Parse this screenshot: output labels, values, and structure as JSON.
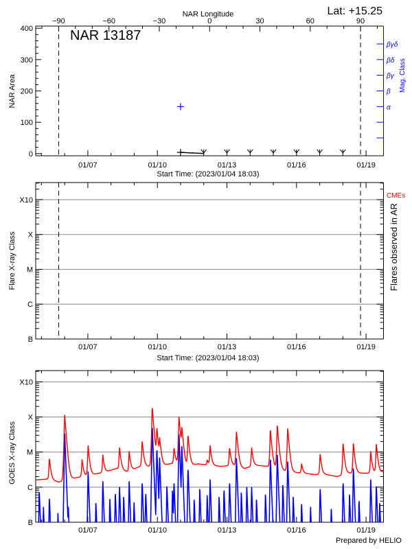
{
  "header": {
    "top_axis_label": "NAR Longitude",
    "lat_label": "Lat: +15.25",
    "region_label": "NAR 13187"
  },
  "footer": "Prepared by HELIO",
  "colors": {
    "long_channel": "#ff0000",
    "short_channel": "#0000ff",
    "mag_class": "#0000ff",
    "cme": "#ff0000",
    "grid": "#999999",
    "axis": "#000000"
  },
  "chart_data": [
    {
      "type": "line",
      "panel": "nar-area",
      "xlabel": "Start Time: (2023/01/04 18:03)",
      "xlim": [
        "2023-01-04T18:03:00Z",
        "2023-01-19T18:03:00Z"
      ],
      "xticks": [
        {
          "t": "2023-01-07T00:00:00Z",
          "label": "01/07"
        },
        {
          "t": "2023-01-10T00:00:00Z",
          "label": "01/10"
        },
        {
          "t": "2023-01-13T00:00:00Z",
          "label": "01/13"
        },
        {
          "t": "2023-01-16T00:00:00Z",
          "label": "01/16"
        },
        {
          "t": "2023-01-19T00:00:00Z",
          "label": "01/19"
        }
      ],
      "top_xlabel": "NAR Longitude",
      "top_xlim": [
        -103.7,
        103.7
      ],
      "top_xticks": [
        "-90",
        "-60",
        "-30",
        "0",
        "30",
        "60",
        "90"
      ],
      "limb_longitudes": [
        -90,
        90
      ],
      "ylabel": "NAR Area",
      "ylim": [
        -7,
        407
      ],
      "yticks": [
        "0",
        "100",
        "200",
        "300",
        "400"
      ],
      "y2label": "Mag. Class",
      "y2ticks": [
        "α",
        "β",
        "βγ",
        "βδ",
        "βγδ"
      ],
      "area_series": [
        {
          "t": "2023-01-11T00:00:00Z",
          "area": 4,
          "marker": "plus"
        },
        {
          "t": "2023-01-12T00:00:00Z",
          "area": 0,
          "marker": "arrow"
        },
        {
          "t": "2023-01-13T00:00:00Z",
          "area": 0,
          "marker": "arrow"
        },
        {
          "t": "2023-01-14T00:00:00Z",
          "area": 0,
          "marker": "arrow"
        },
        {
          "t": "2023-01-15T00:00:00Z",
          "area": 0,
          "marker": "arrow"
        },
        {
          "t": "2023-01-16T00:00:00Z",
          "area": 0,
          "marker": "arrow"
        },
        {
          "t": "2023-01-17T00:00:00Z",
          "area": 0,
          "marker": "arrow"
        },
        {
          "t": "2023-01-18T00:00:00Z",
          "area": 0,
          "marker": "arrow"
        }
      ],
      "mag_class_series": [
        {
          "t": "2023-01-11T00:00:00Z",
          "class": "α"
        }
      ]
    },
    {
      "type": "scatter",
      "panel": "flares",
      "xlabel": "Start Time: (2023/01/04 18:03)",
      "xlim": [
        "2023-01-04T18:03:00Z",
        "2023-01-19T18:03:00Z"
      ],
      "xticks": [
        "01/07",
        "01/10",
        "01/13",
        "01/16",
        "01/19"
      ],
      "ylabel": "Flare X-ray Class",
      "ylim": [
        "B1.0",
        "X31"
      ],
      "yticks": [
        "B",
        "C",
        "M",
        "X",
        "X10"
      ],
      "y2label": "Flares observed in AR",
      "legend": [
        {
          "name": "CMEs",
          "color": "#ff0000"
        }
      ],
      "grid": true,
      "limb_longitudes": [
        -90,
        90
      ],
      "flares": []
    },
    {
      "type": "line",
      "panel": "goes",
      "xlim": [
        "2023-01-04T18:03:00Z",
        "2023-01-19T18:03:00Z"
      ],
      "xticks": [
        "01/07",
        "01/10",
        "01/13",
        "01/16",
        "01/19"
      ],
      "ylabel": "GOES X-ray Class",
      "ylim": [
        "B1.0",
        "X21"
      ],
      "yticks": [
        "B",
        "C",
        "M",
        "X",
        "X10"
      ],
      "grid": true,
      "long_channel": {
        "baseline": {
          "t_start": "2023-01-04T18:00:00Z",
          "step_hours": 12,
          "values": [
            "C1.6",
            "C1.7",
            "C1.4",
            "C1.7",
            "C2.0",
            "C2.3",
            "C2.7",
            "C3.4",
            "C2.7",
            "C3.9",
            "C3.9",
            "C4.2",
            "C4.9",
            "C3.9",
            "C4.6",
            "C4.2",
            "C3.9",
            "C4.2",
            "C3.4",
            "C4.2",
            "C3.9",
            "C3.1",
            "C2.7",
            "C2.5",
            "C2.3",
            "C2.3",
            "C2.0",
            "C2.5",
            "C2.5",
            "C2.5",
            "C2.7"
          ]
        },
        "peaks": [
          {
            "t": "2023-01-05T08:10:00Z",
            "class": "C7.0"
          },
          {
            "t": "2023-01-06T00:00:00Z",
            "class": "X1.2"
          },
          {
            "t": "2023-01-06T18:00:00Z",
            "class": "C6.4"
          },
          {
            "t": "2023-01-07T00:15:00Z",
            "class": "M1.6"
          },
          {
            "t": "2023-01-07T15:30:00Z",
            "class": "C8.7"
          },
          {
            "t": "2023-01-08T08:45:00Z",
            "class": "M1.4"
          },
          {
            "t": "2023-01-08T18:45:00Z",
            "class": "M1.1"
          },
          {
            "t": "2023-01-09T08:10:00Z",
            "class": "M2.2"
          },
          {
            "t": "2023-01-09T18:40:00Z",
            "class": "X2.0"
          },
          {
            "t": "2023-01-09T23:25:00Z",
            "class": "M5.3"
          },
          {
            "t": "2023-01-10T02:15:00Z",
            "class": "M2.7"
          },
          {
            "t": "2023-01-10T17:10:00Z",
            "class": "M1.4"
          },
          {
            "t": "2023-01-10T22:20:00Z",
            "class": "X1.1"
          },
          {
            "t": "2023-01-11T01:15:00Z",
            "class": "M5.3"
          },
          {
            "t": "2023-01-11T07:40:00Z",
            "class": "M3.2"
          },
          {
            "t": "2023-01-12T03:30:00Z",
            "class": "C6.1"
          },
          {
            "t": "2023-01-12T06:30:00Z",
            "class": "M1.6"
          },
          {
            "t": "2023-01-13T02:40:00Z",
            "class": "M1.4"
          },
          {
            "t": "2023-01-13T09:50:00Z",
            "class": "M4.1"
          },
          {
            "t": "2023-01-14T01:30:00Z",
            "class": "M1.4"
          },
          {
            "t": "2023-01-14T20:55:00Z",
            "class": "M4.6"
          },
          {
            "t": "2023-01-15T04:05:00Z",
            "class": "M6.1"
          },
          {
            "t": "2023-01-15T14:50:00Z",
            "class": "M5.1"
          },
          {
            "t": "2023-01-16T05:10:00Z",
            "class": "C4.9"
          },
          {
            "t": "2023-01-17T00:25:00Z",
            "class": "C9.5"
          },
          {
            "t": "2023-01-18T00:10:00Z",
            "class": "M1.9"
          },
          {
            "t": "2023-01-18T10:50:00Z",
            "class": "M1.9"
          },
          {
            "t": "2023-01-19T04:45:00Z",
            "class": "M1.1"
          },
          {
            "t": "2023-01-19T10:35:00Z",
            "class": "M1.8"
          }
        ]
      },
      "short_channel": {
        "peaks": [
          {
            "t": "2023-01-04T21:40:00Z",
            "class": "B9.0"
          },
          {
            "t": "2023-01-05T02:00:00Z",
            "class": "B3.0"
          },
          {
            "t": "2023-01-05T08:10:00Z",
            "class": "B5.8"
          },
          {
            "t": "2023-01-05T17:00:00Z",
            "class": "B2.0"
          },
          {
            "t": "2023-01-06T00:00:00Z",
            "class": "M3.7"
          },
          {
            "t": "2023-01-06T03:45:00Z",
            "class": "B3.0"
          },
          {
            "t": "2023-01-07T00:15:00Z",
            "class": "C3.0"
          },
          {
            "t": "2023-01-07T08:20:00Z",
            "class": "B4.0"
          },
          {
            "t": "2023-01-07T15:30:00Z",
            "class": "C1.6"
          },
          {
            "t": "2023-01-07T22:45:00Z",
            "class": "B5.0"
          },
          {
            "t": "2023-01-08T04:25:00Z",
            "class": "B8.0"
          },
          {
            "t": "2023-01-08T08:45:00Z",
            "class": "C1.1"
          },
          {
            "t": "2023-01-08T13:05:00Z",
            "class": "B6.0"
          },
          {
            "t": "2023-01-08T18:45:00Z",
            "class": "C1.6"
          },
          {
            "t": "2023-01-08T23:45:00Z",
            "class": "B4.0"
          },
          {
            "t": "2023-01-09T08:10:00Z",
            "class": "C1.6"
          },
          {
            "t": "2023-01-09T11:55:00Z",
            "class": "B8.0"
          },
          {
            "t": "2023-01-09T18:40:00Z",
            "class": "M6.1"
          },
          {
            "t": "2023-01-09T23:25:00Z",
            "class": "M1.4"
          },
          {
            "t": "2023-01-10T02:15:00Z",
            "class": "C7.6"
          },
          {
            "t": "2023-01-10T09:50:00Z",
            "class": "C1.2"
          },
          {
            "t": "2023-01-10T15:35:00Z",
            "class": "B9.0"
          },
          {
            "t": "2023-01-10T17:10:00Z",
            "class": "C1.6"
          },
          {
            "t": "2023-01-10T22:20:00Z",
            "class": "M3.7"
          },
          {
            "t": "2023-01-11T01:15:00Z",
            "class": "M1.6"
          },
          {
            "t": "2023-01-11T07:40:00Z",
            "class": "C3.9"
          },
          {
            "t": "2023-01-11T14:05:00Z",
            "class": "B5.0"
          },
          {
            "t": "2023-01-11T19:50:00Z",
            "class": "C1.0"
          },
          {
            "t": "2023-01-12T03:30:00Z",
            "class": "B6.4"
          },
          {
            "t": "2023-01-12T06:30:00Z",
            "class": "C1.8"
          },
          {
            "t": "2023-01-12T15:50:00Z",
            "class": "B6.0"
          },
          {
            "t": "2023-01-12T20:55:00Z",
            "class": "C1.0"
          },
          {
            "t": "2023-01-13T02:40:00Z",
            "class": "C1.6"
          },
          {
            "t": "2023-01-13T09:50:00Z",
            "class": "C7.6"
          },
          {
            "t": "2023-01-13T14:50:00Z",
            "class": "B8.0"
          },
          {
            "t": "2023-01-13T20:30:00Z",
            "class": "C1.1"
          },
          {
            "t": "2023-01-14T01:30:00Z",
            "class": "C1.1"
          },
          {
            "t": "2023-01-14T06:35:00Z",
            "class": "B5.0"
          },
          {
            "t": "2023-01-14T15:50:00Z",
            "class": "B7.0"
          },
          {
            "t": "2023-01-14T20:55:00Z",
            "class": "C7.6"
          },
          {
            "t": "2023-01-15T04:05:00Z",
            "class": "C9.5"
          },
          {
            "t": "2023-01-15T09:50:00Z",
            "class": "C1.3"
          },
          {
            "t": "2023-01-15T14:50:00Z",
            "class": "C6.1"
          },
          {
            "t": "2023-01-15T20:35:00Z",
            "class": "B6.0"
          },
          {
            "t": "2023-01-16T05:10:00Z",
            "class": "B4.1"
          },
          {
            "t": "2023-01-16T14:30:00Z",
            "class": "B3.0"
          },
          {
            "t": "2023-01-17T00:25:00Z",
            "class": "C1.1"
          },
          {
            "t": "2023-01-17T11:55:00Z",
            "class": "B3.0"
          },
          {
            "t": "2023-01-18T00:10:00Z",
            "class": "C1.6"
          },
          {
            "t": "2023-01-18T06:50:00Z",
            "class": "B7.0"
          },
          {
            "t": "2023-01-18T10:50:00Z",
            "class": "C3.9"
          },
          {
            "t": "2023-01-18T16:40:00Z",
            "class": "B5.0"
          },
          {
            "t": "2023-01-19T04:45:00Z",
            "class": "C1.8"
          },
          {
            "t": "2023-01-19T10:35:00Z",
            "class": "C1.2"
          },
          {
            "t": "2023-01-19T14:05:00Z",
            "class": "B4.0"
          }
        ]
      }
    }
  ]
}
